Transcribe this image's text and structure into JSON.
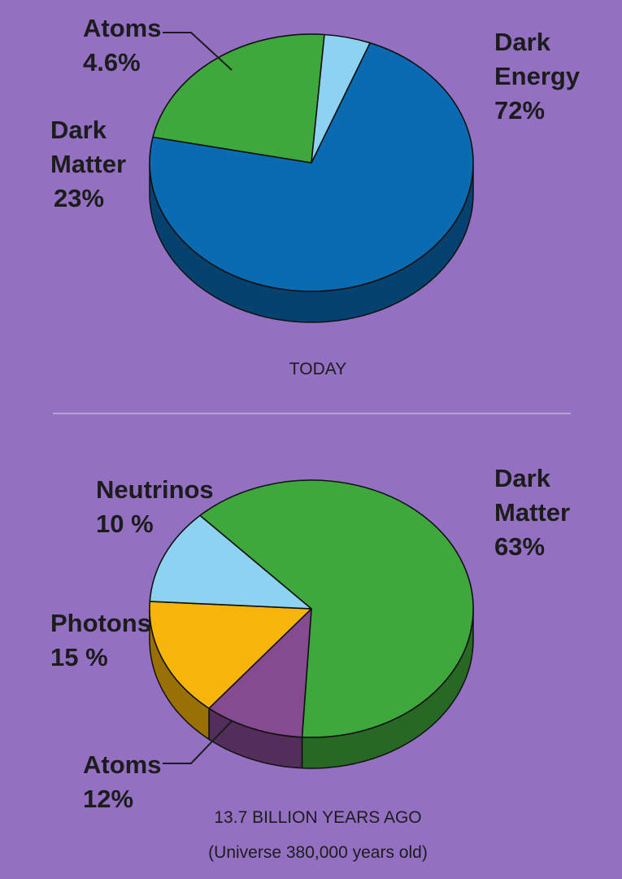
{
  "background_color": "#9470c2",
  "chart_data": [
    {
      "type": "pie",
      "title": "",
      "caption": "TODAY",
      "slices": [
        {
          "label_lines": [
            "Dark",
            "Energy",
            "72%"
          ],
          "value": 72,
          "color": "#0a6bb3"
        },
        {
          "label_lines": [
            "Dark",
            "Matter",
            "23%"
          ],
          "value": 23,
          "color": "#3fa83c"
        },
        {
          "label_lines": [
            "Atoms",
            "4.6%"
          ],
          "value": 4.6,
          "color": "#8dd3f1"
        }
      ]
    },
    {
      "type": "pie",
      "title": "",
      "caption": "13.7 BILLION YEARS AGO",
      "subcaption": "(Universe 380,000 years old)",
      "slices": [
        {
          "label_lines": [
            "Dark",
            "Matter",
            "63%"
          ],
          "value": 63,
          "color": "#3fa83c"
        },
        {
          "label_lines": [
            "Neutrinos",
            "10 %"
          ],
          "value": 10,
          "color": "#864a91"
        },
        {
          "label_lines": [
            "Photons",
            "15 %"
          ],
          "value": 15,
          "color": "#f7b40a"
        },
        {
          "label_lines": [
            "Atoms",
            "12%"
          ],
          "value": 12,
          "color": "#8dd3f1"
        }
      ]
    }
  ]
}
